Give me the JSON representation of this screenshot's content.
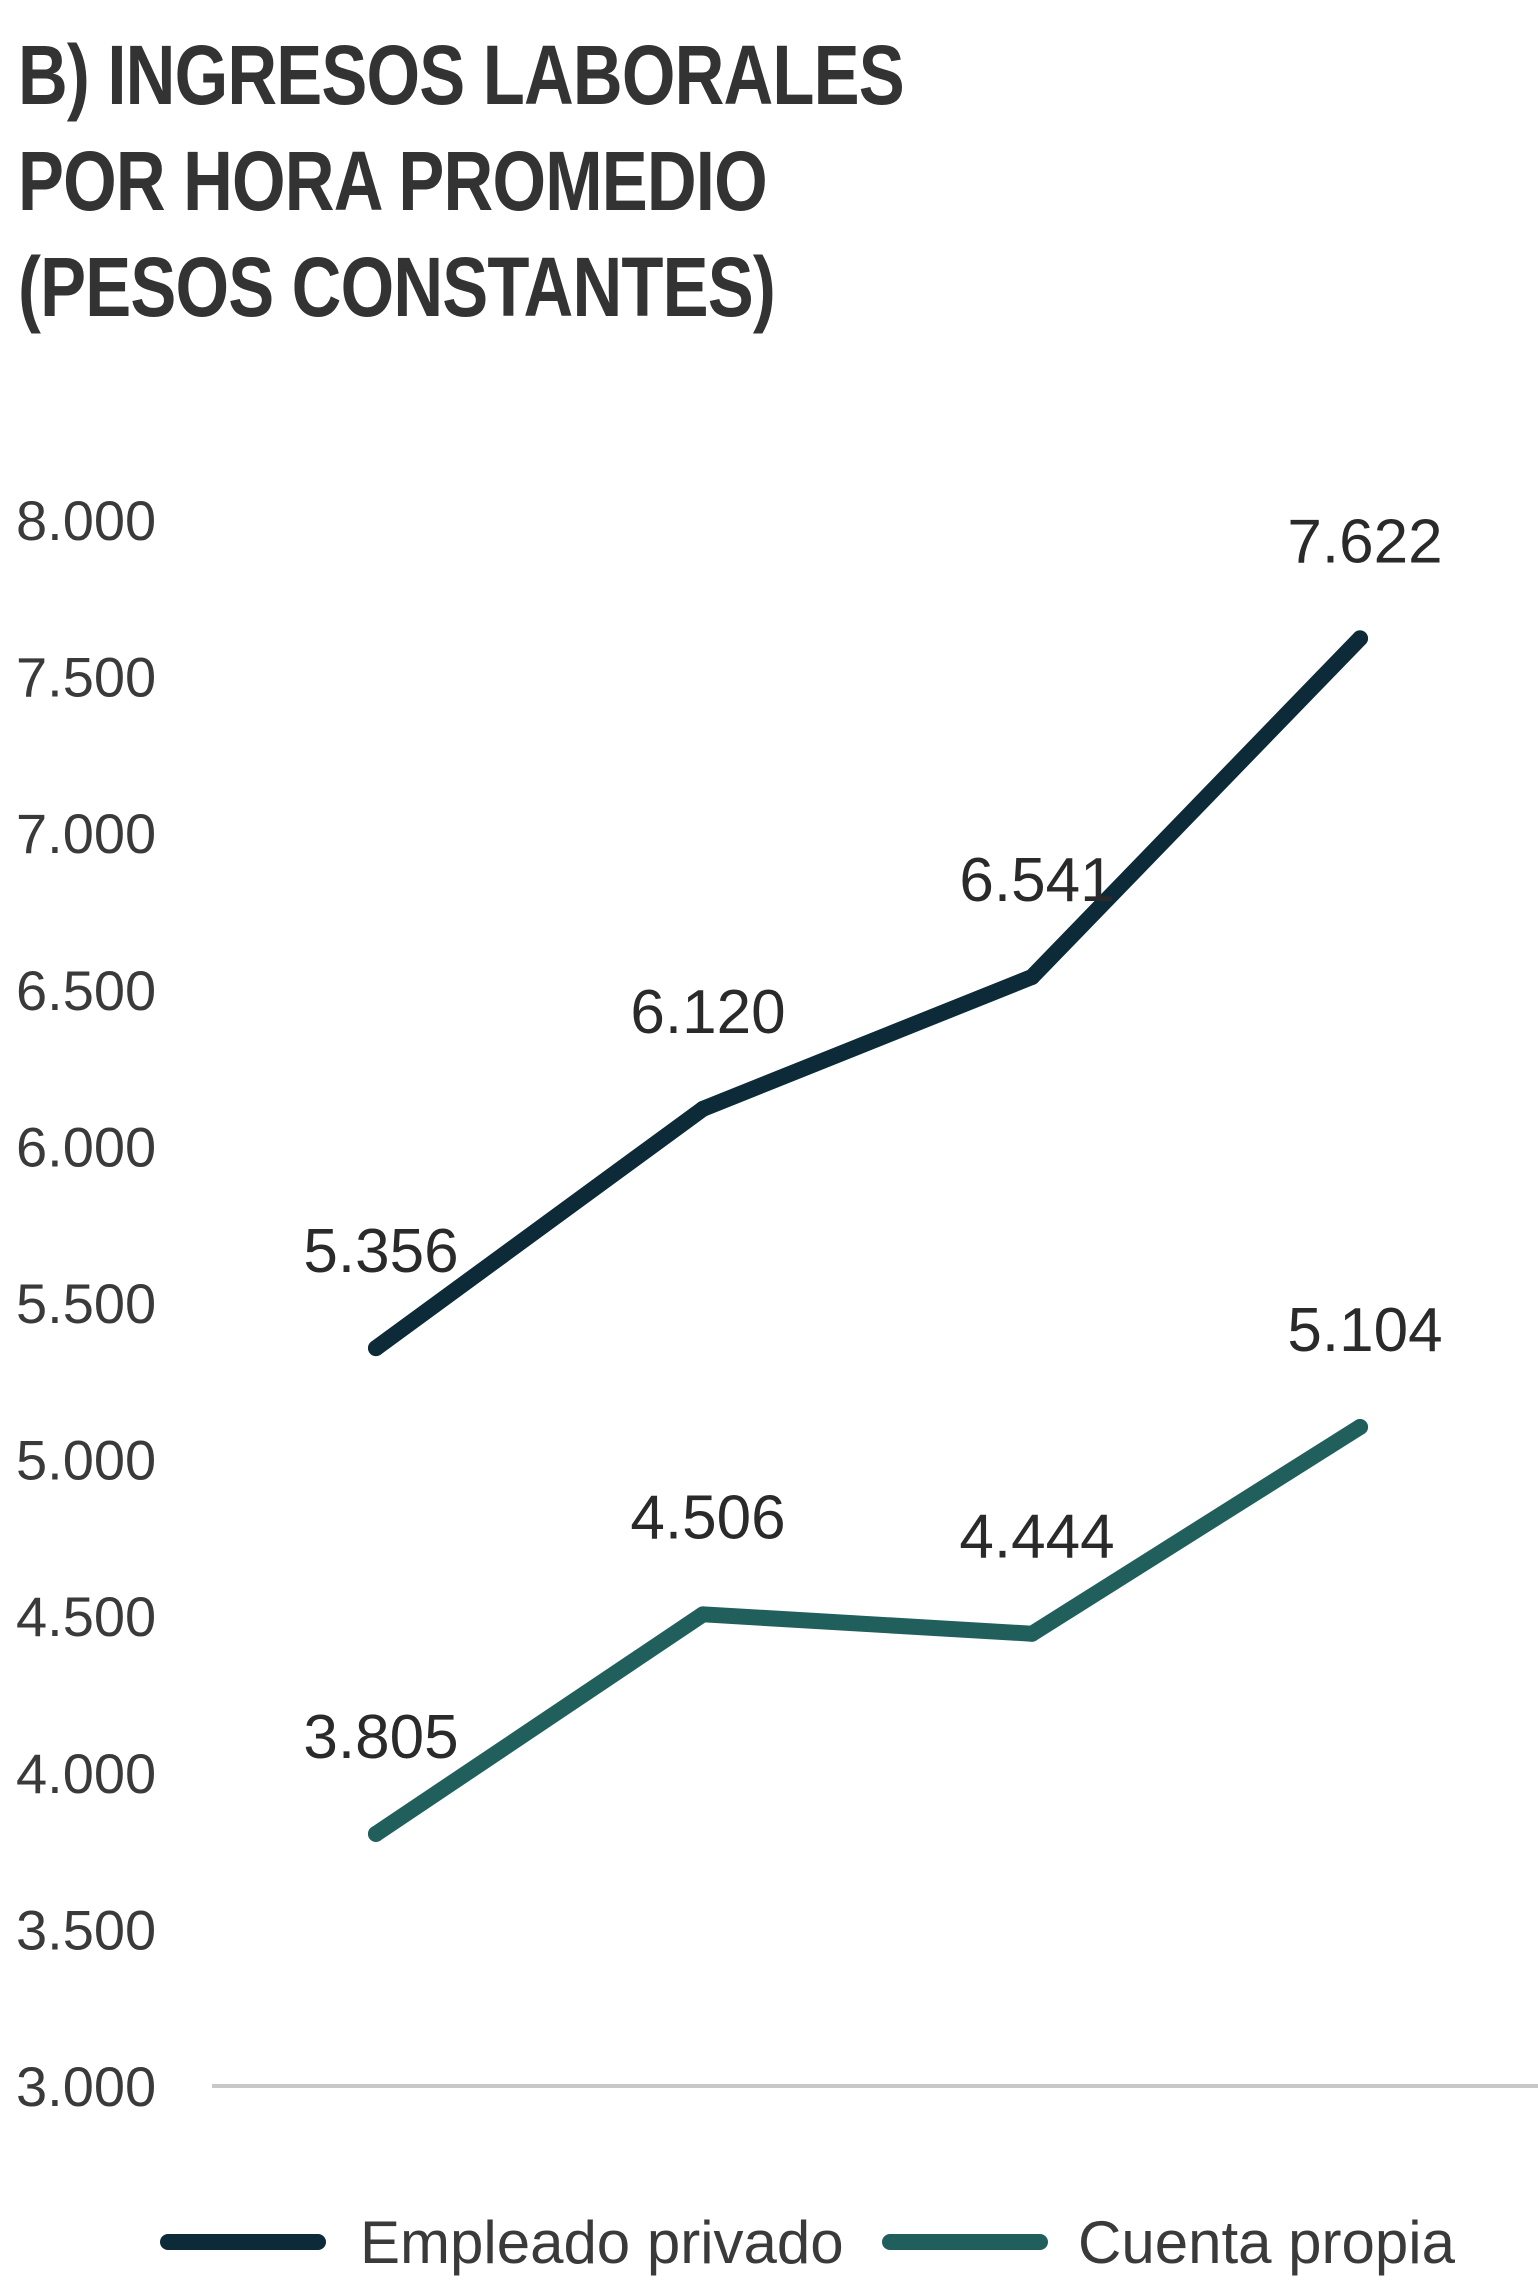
{
  "chart_data": {
    "type": "line",
    "title_lines": [
      "B) INGRESOS LABORALES",
      "POR HORA PROMEDIO",
      "(PESOS CONSTANTES)"
    ],
    "x": [
      "",
      "",
      "",
      ""
    ],
    "ylim": [
      3000,
      8000
    ],
    "y_ticks": [
      3000,
      3500,
      4000,
      4500,
      5000,
      5500,
      6000,
      6500,
      7000,
      7500,
      8000
    ],
    "y_tick_labels": [
      "3.000",
      "3.500",
      "4.000",
      "4.500",
      "5.000",
      "5.500",
      "6.000",
      "6.500",
      "7.000",
      "7.500",
      "8.000"
    ],
    "grid": false,
    "legend_position": "bottom",
    "series": [
      {
        "name": "Empleado privado",
        "color": "#0d2a38",
        "values": [
          5356,
          6120,
          6541,
          7622
        ],
        "labels": [
          "5.356",
          "6.120",
          "6.541",
          "7.622"
        ]
      },
      {
        "name": "Cuenta propia",
        "color": "#215f5d",
        "values": [
          3805,
          4506,
          4444,
          5104
        ],
        "labels": [
          "3.805",
          "4.506",
          "4.444",
          "5.104"
        ]
      }
    ],
    "baseline_color": "#c8c8c8"
  }
}
